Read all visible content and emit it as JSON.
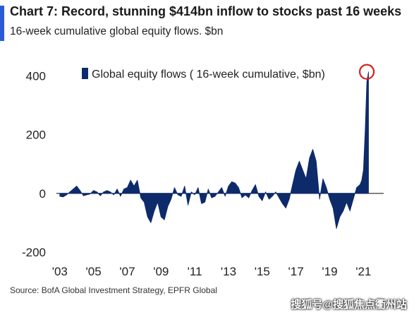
{
  "header": {
    "title": "Chart 7: Record, stunning $414bn inflow to stocks past 16 weeks",
    "subtitle": "16-week cumulative global equity flows. $bn"
  },
  "footer": {
    "source": "Source:  BofA Global Investment Strategy, EPFR Global",
    "watermark": "搜狐号@搜狐焦点衢州站"
  },
  "colors": {
    "series": "#0d2a6b",
    "accent": "#2a5bd7",
    "highlight": "#d81e1e"
  },
  "chart_data": {
    "type": "area",
    "title": "Chart 7: Record, stunning $414bn inflow to stocks past 16 weeks",
    "subtitle": "16-week cumulative global equity flows. $bn",
    "xlabel": "",
    "ylabel": "",
    "xlim": [
      2002.8,
      2022.2
    ],
    "ylim": [
      -200,
      430
    ],
    "y_ticks": [
      400,
      200,
      0,
      -200
    ],
    "y_tick_labels": [
      "400",
      "200",
      "0",
      "-200"
    ],
    "x_ticks": [
      2003,
      2005,
      2007,
      2009,
      2011,
      2013,
      2015,
      2017,
      2019,
      2021
    ],
    "x_tick_labels": [
      "'03",
      "'05",
      "'07",
      "'09",
      "'11",
      "'13",
      "'15",
      "'17",
      "'19",
      "'21"
    ],
    "grid": false,
    "legend": "top",
    "annotation": {
      "x": 2021.2,
      "y": 414,
      "shape": "circle"
    },
    "series": [
      {
        "name": "Global equity flows ( 16-week cumulative, $bn)",
        "x": [
          2003.0,
          2003.2,
          2003.4,
          2003.6,
          2003.8,
          2004.0,
          2004.2,
          2004.4,
          2004.6,
          2004.8,
          2005.0,
          2005.2,
          2005.4,
          2005.6,
          2005.8,
          2006.0,
          2006.2,
          2006.4,
          2006.6,
          2006.8,
          2007.0,
          2007.2,
          2007.4,
          2007.6,
          2007.8,
          2008.0,
          2008.2,
          2008.4,
          2008.6,
          2008.8,
          2009.0,
          2009.2,
          2009.4,
          2009.6,
          2009.8,
          2010.0,
          2010.2,
          2010.4,
          2010.6,
          2010.8,
          2011.0,
          2011.2,
          2011.4,
          2011.6,
          2011.8,
          2012.0,
          2012.2,
          2012.4,
          2012.6,
          2012.8,
          2013.0,
          2013.2,
          2013.4,
          2013.6,
          2013.8,
          2014.0,
          2014.2,
          2014.4,
          2014.6,
          2014.8,
          2015.0,
          2015.2,
          2015.4,
          2015.6,
          2015.8,
          2016.0,
          2016.2,
          2016.4,
          2016.6,
          2016.8,
          2017.0,
          2017.2,
          2017.4,
          2017.6,
          2017.8,
          2018.0,
          2018.2,
          2018.4,
          2018.6,
          2018.8,
          2019.0,
          2019.2,
          2019.4,
          2019.6,
          2019.8,
          2020.0,
          2020.2,
          2020.4,
          2020.6,
          2020.8,
          2020.9,
          2021.0,
          2021.1,
          2021.2,
          2021.3
        ],
        "values": [
          -10,
          -12,
          -5,
          5,
          15,
          25,
          10,
          -8,
          -5,
          -2,
          10,
          5,
          -8,
          5,
          10,
          5,
          -5,
          15,
          -10,
          15,
          20,
          45,
          25,
          45,
          -15,
          -30,
          -80,
          -100,
          -60,
          -30,
          -80,
          -90,
          -45,
          -20,
          20,
          -5,
          -10,
          25,
          -40,
          5,
          -5,
          20,
          -35,
          -30,
          15,
          -15,
          -10,
          5,
          20,
          -10,
          25,
          40,
          35,
          20,
          -15,
          -5,
          -15,
          10,
          30,
          -10,
          -25,
          5,
          -20,
          -10,
          5,
          -15,
          -35,
          -50,
          -20,
          30,
          80,
          110,
          80,
          50,
          120,
          150,
          110,
          -20,
          50,
          20,
          -20,
          -50,
          -120,
          -80,
          -60,
          -30,
          -60,
          -20,
          20,
          30,
          45,
          80,
          210,
          380,
          414
        ]
      }
    ]
  }
}
